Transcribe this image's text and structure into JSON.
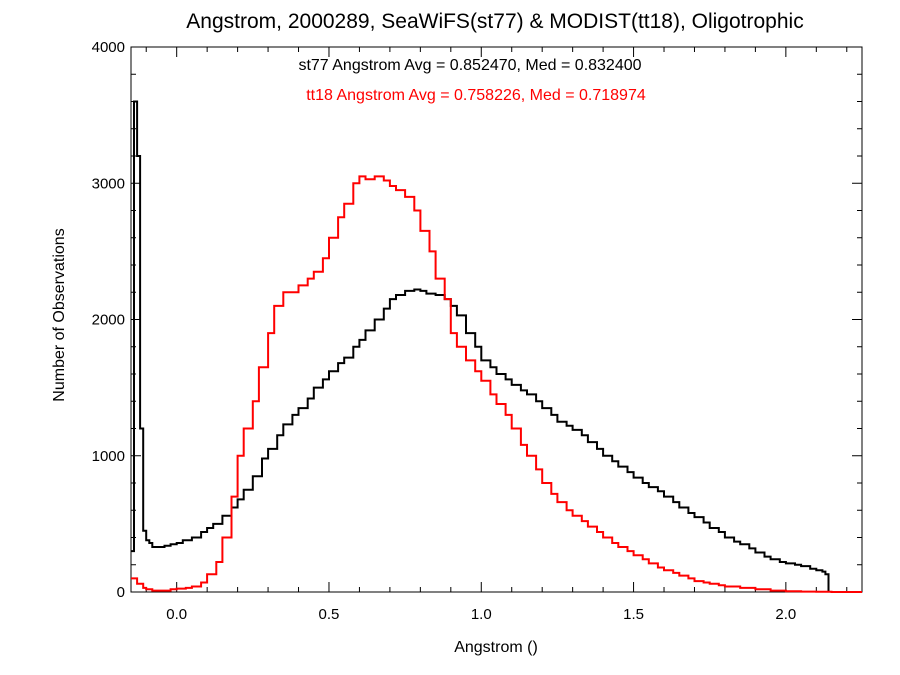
{
  "chart_data": {
    "type": "line",
    "title": "Angstrom, 2000289, SeaWiFS(st77) & MODIST(tt18), Oligotrophic",
    "xlabel": "Angstrom ()",
    "ylabel": "Number of Observations",
    "xlim": [
      -0.15,
      2.25
    ],
    "ylim": [
      0,
      4000
    ],
    "x_ticks": [
      "0.0",
      "0.5",
      "1.0",
      "1.5",
      "2.0"
    ],
    "y_ticks": [
      "0",
      "1000",
      "2000",
      "3000",
      "4000"
    ],
    "grid": false,
    "annotations": [
      {
        "text": "st77 Angstrom Avg = 0.852470, Med = 0.832400",
        "color": "#000000"
      },
      {
        "text": "tt18 Angstrom Avg = 0.758226, Med = 0.718974",
        "color": "#ff0000"
      }
    ],
    "series": [
      {
        "color": "#000000",
        "x": [
          -0.15,
          -0.14,
          -0.13,
          -0.12,
          -0.11,
          -0.1,
          -0.09,
          -0.08,
          -0.06,
          -0.04,
          -0.02,
          0.0,
          0.02,
          0.05,
          0.08,
          0.1,
          0.12,
          0.15,
          0.18,
          0.2,
          0.22,
          0.25,
          0.28,
          0.3,
          0.33,
          0.35,
          0.38,
          0.4,
          0.43,
          0.45,
          0.48,
          0.5,
          0.53,
          0.55,
          0.58,
          0.6,
          0.62,
          0.65,
          0.68,
          0.7,
          0.72,
          0.75,
          0.78,
          0.8,
          0.82,
          0.85,
          0.88,
          0.9,
          0.92,
          0.95,
          0.98,
          1.0,
          1.03,
          1.05,
          1.08,
          1.1,
          1.13,
          1.15,
          1.18,
          1.2,
          1.23,
          1.25,
          1.28,
          1.3,
          1.33,
          1.35,
          1.38,
          1.4,
          1.43,
          1.45,
          1.48,
          1.5,
          1.53,
          1.55,
          1.58,
          1.6,
          1.63,
          1.65,
          1.68,
          1.7,
          1.73,
          1.75,
          1.78,
          1.8,
          1.83,
          1.85,
          1.88,
          1.9,
          1.93,
          1.95,
          1.98,
          2.0,
          2.03,
          2.05,
          2.08,
          2.1,
          2.12,
          2.13,
          2.14
        ],
        "values": [
          300,
          3600,
          3200,
          1200,
          450,
          380,
          360,
          330,
          330,
          340,
          350,
          360,
          380,
          400,
          440,
          470,
          500,
          560,
          620,
          680,
          750,
          850,
          980,
          1050,
          1150,
          1230,
          1300,
          1350,
          1420,
          1500,
          1560,
          1620,
          1680,
          1720,
          1800,
          1850,
          1920,
          2000,
          2080,
          2150,
          2180,
          2210,
          2220,
          2210,
          2190,
          2180,
          2150,
          2100,
          2030,
          1900,
          1800,
          1700,
          1650,
          1600,
          1560,
          1520,
          1480,
          1450,
          1400,
          1350,
          1300,
          1250,
          1220,
          1190,
          1150,
          1100,
          1050,
          1000,
          960,
          920,
          880,
          840,
          800,
          770,
          740,
          700,
          660,
          620,
          580,
          550,
          510,
          470,
          440,
          400,
          370,
          350,
          320,
          290,
          260,
          240,
          220,
          210,
          200,
          190,
          170,
          160,
          150,
          130,
          0
        ]
      },
      {
        "color": "#ff0000",
        "x": [
          -0.15,
          -0.13,
          -0.11,
          -0.1,
          -0.08,
          -0.05,
          -0.02,
          0.0,
          0.03,
          0.05,
          0.08,
          0.1,
          0.13,
          0.15,
          0.18,
          0.2,
          0.22,
          0.25,
          0.27,
          0.3,
          0.32,
          0.35,
          0.38,
          0.4,
          0.43,
          0.45,
          0.48,
          0.5,
          0.53,
          0.55,
          0.58,
          0.6,
          0.62,
          0.65,
          0.68,
          0.7,
          0.72,
          0.75,
          0.78,
          0.8,
          0.83,
          0.85,
          0.88,
          0.9,
          0.92,
          0.95,
          0.98,
          1.0,
          1.03,
          1.05,
          1.08,
          1.1,
          1.13,
          1.15,
          1.18,
          1.2,
          1.23,
          1.25,
          1.28,
          1.3,
          1.33,
          1.35,
          1.38,
          1.4,
          1.43,
          1.45,
          1.48,
          1.5,
          1.53,
          1.55,
          1.58,
          1.6,
          1.63,
          1.65,
          1.68,
          1.7,
          1.73,
          1.75,
          1.78,
          1.8,
          1.85,
          1.9,
          1.95,
          2.0,
          2.05,
          2.1,
          2.15,
          2.2,
          2.25
        ],
        "values": [
          100,
          60,
          30,
          20,
          10,
          10,
          20,
          25,
          30,
          40,
          70,
          130,
          220,
          400,
          700,
          1000,
          1200,
          1400,
          1650,
          1900,
          2100,
          2200,
          2200,
          2250,
          2300,
          2350,
          2450,
          2600,
          2750,
          2850,
          3000,
          3050,
          3030,
          3050,
          3020,
          2980,
          2950,
          2900,
          2800,
          2650,
          2500,
          2300,
          2150,
          1900,
          1800,
          1700,
          1620,
          1550,
          1450,
          1380,
          1300,
          1200,
          1080,
          1000,
          900,
          800,
          720,
          660,
          600,
          560,
          520,
          480,
          440,
          400,
          360,
          330,
          300,
          270,
          240,
          210,
          180,
          160,
          140,
          120,
          100,
          80,
          70,
          60,
          50,
          40,
          30,
          20,
          10,
          5,
          3,
          2,
          0,
          0,
          0
        ]
      }
    ]
  }
}
